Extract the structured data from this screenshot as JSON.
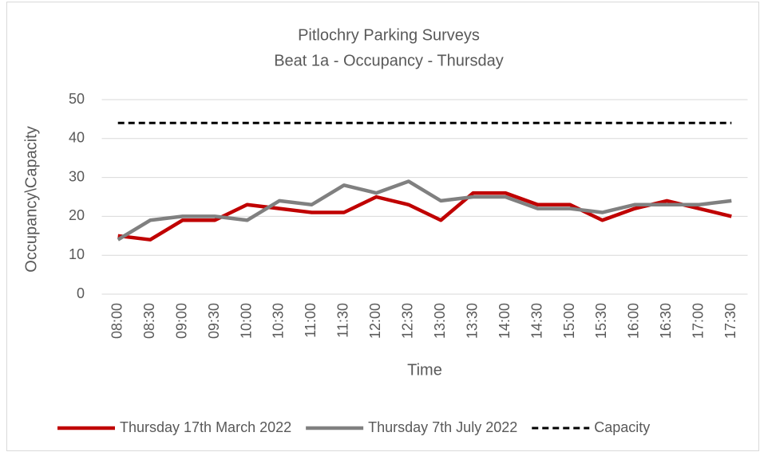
{
  "chart_data": {
    "type": "line",
    "title": "Pitlochry Parking Surveys",
    "subtitle": "Beat 1a - Occupancy - Thursday",
    "x_label": "Time",
    "y_label": "Occupancy\\Capacity",
    "categories": [
      "08:00",
      "08:30",
      "09:00",
      "09:30",
      "10:00",
      "10:30",
      "11:00",
      "11:30",
      "12:00",
      "12:30",
      "13:00",
      "13:30",
      "14:00",
      "14:30",
      "15:00",
      "15:30",
      "16:00",
      "16:30",
      "17:00",
      "17:30"
    ],
    "series": [
      {
        "name": "Thursday 17th March 2022",
        "color": "#c00000",
        "dash": false,
        "values": [
          15,
          14,
          19,
          19,
          23,
          22,
          21,
          21,
          25,
          23,
          19,
          26,
          26,
          23,
          23,
          19,
          22,
          24,
          22,
          20
        ]
      },
      {
        "name": "Thursday 7th July 2022",
        "color": "#808080",
        "dash": false,
        "values": [
          14,
          19,
          20,
          20,
          19,
          24,
          23,
          28,
          26,
          29,
          24,
          25,
          25,
          22,
          22,
          21,
          23,
          23,
          23,
          24
        ]
      },
      {
        "name": "Capacity",
        "color": "#000000",
        "dash": true,
        "values": [
          44,
          44,
          44,
          44,
          44,
          44,
          44,
          44,
          44,
          44,
          44,
          44,
          44,
          44,
          44,
          44,
          44,
          44,
          44,
          44
        ]
      }
    ],
    "ylim": [
      0,
      50
    ],
    "yticks": [
      0,
      10,
      20,
      30,
      40,
      50
    ],
    "grid": true,
    "legend": "bottom"
  }
}
